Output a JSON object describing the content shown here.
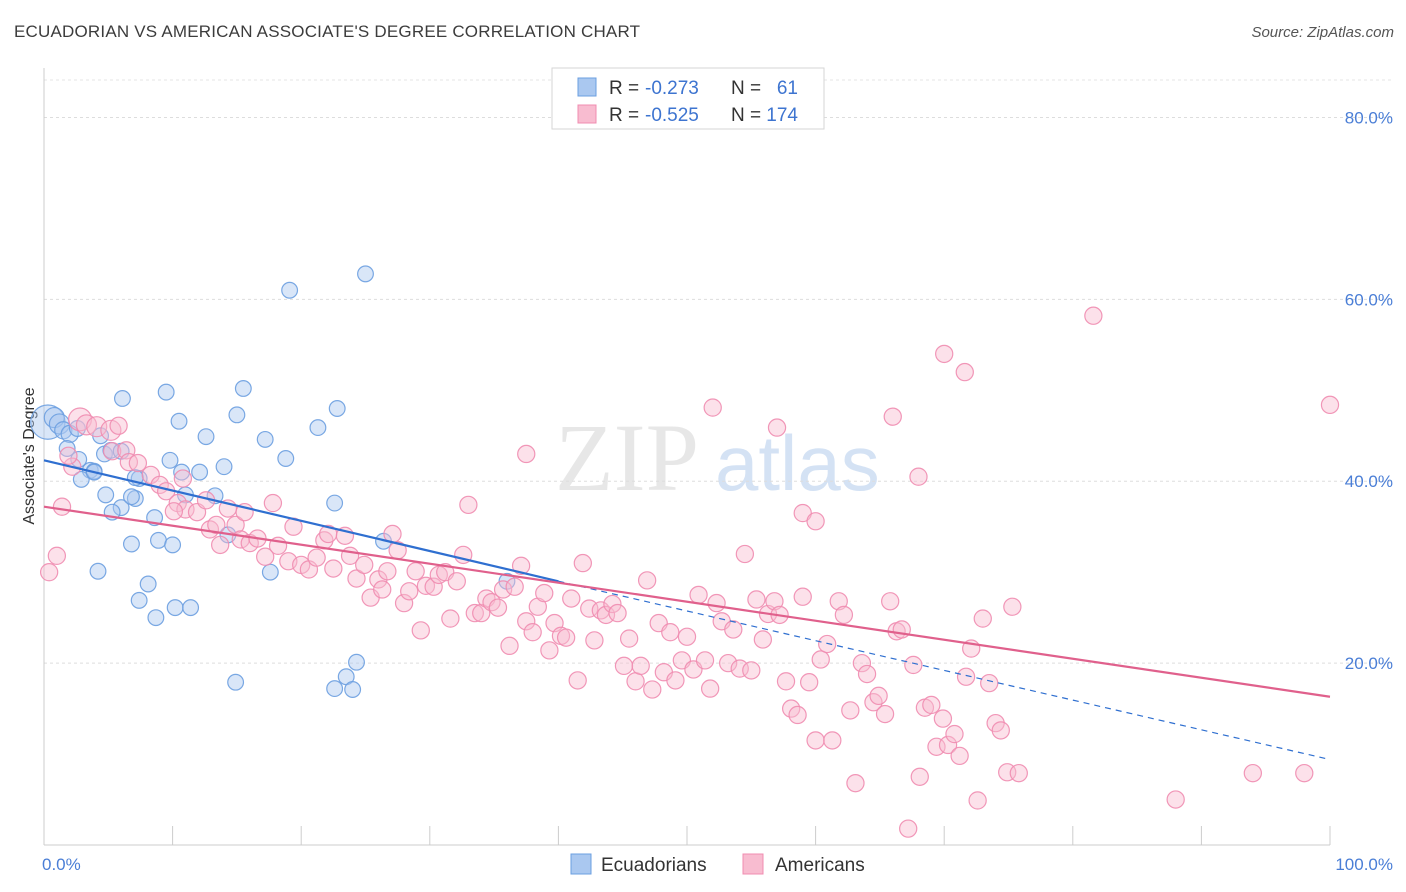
{
  "chart_data": {
    "type": "scatter",
    "title": "ECUADORIAN VS AMERICAN ASSOCIATE'S DEGREE CORRELATION CHART",
    "source": "Source: ZipAtlas.com",
    "watermark": {
      "part1": "ZIP",
      "part2": "atlas"
    },
    "ylabel": "Associate's Degree",
    "xlim": [
      0,
      100
    ],
    "ylim": [
      0,
      85
    ],
    "x_tick_labels": [
      {
        "value": 0,
        "label": "0.0%"
      },
      {
        "value": 100,
        "label": "100.0%"
      }
    ],
    "y_tick_labels": [
      {
        "value": 20,
        "label": "20.0%"
      },
      {
        "value": 40,
        "label": "40.0%"
      },
      {
        "value": 60,
        "label": "60.0%"
      },
      {
        "value": 80,
        "label": "80.0%"
      }
    ],
    "grid": "horizontal dashed",
    "legend_position": "top-center",
    "legend": [
      {
        "r_label": "R =",
        "r_value": "-0.273",
        "n_label": "N =",
        "n_value": "61",
        "color": "#6b9fe0"
      },
      {
        "r_label": "R =",
        "r_value": "-0.525",
        "n_label": "N =",
        "n_value": "174",
        "color": "#f08cb0"
      }
    ],
    "series": [
      {
        "name": "Ecuadorians",
        "color": "#6b9fe0",
        "fill": "#aac8f0",
        "trend_color": "#2f6fd0",
        "trend": {
          "x0": 0,
          "y0": 42.3,
          "x1": 40,
          "y1": 29.0,
          "dash_to_x": 100,
          "dash_to_y": 9.4
        },
        "points": [
          [
            0.3,
            46.5,
            24
          ],
          [
            0.8,
            47.0,
            14
          ],
          [
            1.2,
            46.3,
            14
          ],
          [
            1.5,
            45.6,
            12
          ],
          [
            2.0,
            45.2,
            12
          ],
          [
            1.8,
            43.6,
            11
          ],
          [
            2.6,
            45.8,
            11
          ],
          [
            4.4,
            45.0,
            11
          ],
          [
            2.7,
            42.4,
            11
          ],
          [
            3.6,
            41.2,
            11
          ],
          [
            3.9,
            41.1,
            11
          ],
          [
            2.9,
            40.2,
            11
          ],
          [
            4.7,
            43.0,
            11
          ],
          [
            5.2,
            43.4,
            11
          ],
          [
            6.0,
            43.3,
            11
          ],
          [
            7.4,
            40.3,
            11
          ],
          [
            3.9,
            41.0,
            11
          ],
          [
            4.8,
            38.5,
            11
          ],
          [
            7.1,
            40.4,
            11
          ],
          [
            6.0,
            37.1,
            11
          ],
          [
            5.3,
            36.6,
            11
          ],
          [
            7.1,
            38.1,
            11
          ],
          [
            8.6,
            36.0,
            11
          ],
          [
            6.8,
            38.3,
            11
          ],
          [
            6.1,
            49.1,
            11
          ],
          [
            9.5,
            49.8,
            11
          ],
          [
            10.5,
            46.6,
            11
          ],
          [
            12.6,
            44.9,
            11
          ],
          [
            15.0,
            47.3,
            11
          ],
          [
            15.5,
            50.2,
            11
          ],
          [
            9.8,
            42.3,
            11
          ],
          [
            10.7,
            41.0,
            11
          ],
          [
            12.1,
            41.0,
            11
          ],
          [
            14.0,
            41.6,
            11
          ],
          [
            17.2,
            44.6,
            11
          ],
          [
            18.8,
            42.5,
            11
          ],
          [
            21.3,
            45.9,
            11
          ],
          [
            22.8,
            48.0,
            11
          ],
          [
            11.0,
            38.5,
            11
          ],
          [
            13.3,
            38.4,
            11
          ],
          [
            8.9,
            33.5,
            11
          ],
          [
            6.8,
            33.1,
            11
          ],
          [
            10.0,
            33.0,
            11
          ],
          [
            14.3,
            34.1,
            11
          ],
          [
            4.2,
            30.1,
            11
          ],
          [
            8.1,
            28.7,
            11
          ],
          [
            7.4,
            26.9,
            11
          ],
          [
            8.7,
            25.0,
            11
          ],
          [
            10.2,
            26.1,
            11
          ],
          [
            11.4,
            26.1,
            11
          ],
          [
            17.6,
            30.0,
            11
          ],
          [
            22.6,
            37.6,
            11
          ],
          [
            26.4,
            33.4,
            11
          ],
          [
            36.0,
            29.0,
            11
          ],
          [
            19.1,
            61.0,
            11
          ],
          [
            25.0,
            62.8,
            11
          ],
          [
            14.9,
            17.9,
            11
          ],
          [
            22.6,
            17.2,
            11
          ],
          [
            23.5,
            18.5,
            11
          ],
          [
            24.3,
            20.1,
            11
          ],
          [
            24.0,
            17.1,
            11
          ]
        ]
      },
      {
        "name": "Americans",
        "color": "#f08cb0",
        "fill": "#f8bcd0",
        "trend_color": "#e0608c",
        "trend": {
          "x0": 0,
          "y0": 37.2,
          "x1": 100,
          "y1": 16.3
        },
        "points": [
          [
            0.4,
            30.0,
            12
          ],
          [
            1.0,
            31.8,
            12
          ],
          [
            1.4,
            37.2,
            12
          ],
          [
            2.2,
            41.6,
            12
          ],
          [
            1.9,
            42.8,
            12
          ],
          [
            2.8,
            46.8,
            16
          ],
          [
            3.3,
            46.2,
            14
          ],
          [
            4.1,
            46.0,
            14
          ],
          [
            5.2,
            45.6,
            14
          ],
          [
            5.8,
            46.1,
            12
          ],
          [
            5.3,
            43.3,
            12
          ],
          [
            6.4,
            43.4,
            12
          ],
          [
            6.6,
            42.1,
            12
          ],
          [
            7.3,
            42.0,
            12
          ],
          [
            8.3,
            40.7,
            12
          ],
          [
            9.0,
            39.6,
            12
          ],
          [
            9.5,
            38.9,
            12
          ],
          [
            10.4,
            37.6,
            12
          ],
          [
            11.0,
            36.9,
            12
          ],
          [
            10.1,
            36.7,
            12
          ],
          [
            10.8,
            40.3,
            12
          ],
          [
            11.9,
            36.6,
            12
          ],
          [
            12.6,
            37.9,
            12
          ],
          [
            12.9,
            34.7,
            12
          ],
          [
            13.4,
            35.2,
            12
          ],
          [
            13.7,
            33.0,
            12
          ],
          [
            14.3,
            37.0,
            12
          ],
          [
            14.9,
            35.2,
            12
          ],
          [
            15.3,
            33.6,
            12
          ],
          [
            15.6,
            36.6,
            12
          ],
          [
            16.0,
            33.2,
            12
          ],
          [
            16.6,
            33.7,
            12
          ],
          [
            17.2,
            31.7,
            12
          ],
          [
            17.8,
            37.6,
            12
          ],
          [
            18.2,
            32.9,
            12
          ],
          [
            19.0,
            31.2,
            12
          ],
          [
            19.4,
            35.0,
            12
          ],
          [
            20.0,
            30.8,
            12
          ],
          [
            20.6,
            30.3,
            12
          ],
          [
            21.2,
            31.6,
            12
          ],
          [
            21.8,
            33.5,
            12
          ],
          [
            22.1,
            34.2,
            12
          ],
          [
            22.5,
            30.4,
            12
          ],
          [
            23.4,
            34.0,
            12
          ],
          [
            23.8,
            31.8,
            12
          ],
          [
            24.3,
            29.3,
            12
          ],
          [
            24.9,
            30.8,
            12
          ],
          [
            25.4,
            27.2,
            12
          ],
          [
            26.0,
            29.2,
            12
          ],
          [
            26.3,
            28.1,
            12
          ],
          [
            26.7,
            30.1,
            12
          ],
          [
            27.1,
            34.2,
            12
          ],
          [
            27.5,
            32.4,
            12
          ],
          [
            28.0,
            26.6,
            12
          ],
          [
            28.4,
            27.9,
            12
          ],
          [
            28.9,
            30.1,
            12
          ],
          [
            29.3,
            23.6,
            12
          ],
          [
            29.7,
            28.5,
            12
          ],
          [
            30.3,
            28.4,
            12
          ],
          [
            30.7,
            29.7,
            12
          ],
          [
            31.2,
            30.0,
            12
          ],
          [
            31.6,
            24.9,
            12
          ],
          [
            32.1,
            29.0,
            12
          ],
          [
            32.6,
            31.9,
            12
          ],
          [
            33.0,
            37.4,
            12
          ],
          [
            33.5,
            25.5,
            12
          ],
          [
            34.0,
            25.5,
            12
          ],
          [
            34.4,
            27.1,
            12
          ],
          [
            34.8,
            26.7,
            12
          ],
          [
            35.3,
            26.1,
            12
          ],
          [
            35.7,
            28.1,
            12
          ],
          [
            36.2,
            21.9,
            12
          ],
          [
            36.6,
            28.4,
            12
          ],
          [
            37.1,
            30.7,
            12
          ],
          [
            37.5,
            24.6,
            12
          ],
          [
            38.0,
            23.4,
            12
          ],
          [
            38.4,
            26.2,
            12
          ],
          [
            38.9,
            27.7,
            12
          ],
          [
            39.3,
            21.4,
            12
          ],
          [
            39.7,
            24.4,
            12
          ],
          [
            40.2,
            23.0,
            12
          ],
          [
            40.6,
            22.8,
            12
          ],
          [
            41.0,
            27.1,
            12
          ],
          [
            41.5,
            18.1,
            12
          ],
          [
            41.9,
            31.0,
            12
          ],
          [
            42.4,
            26.0,
            12
          ],
          [
            42.8,
            22.5,
            12
          ],
          [
            43.3,
            25.8,
            12
          ],
          [
            43.7,
            25.3,
            12
          ],
          [
            44.2,
            26.5,
            12
          ],
          [
            44.6,
            25.5,
            12
          ],
          [
            45.1,
            19.7,
            12
          ],
          [
            45.5,
            22.7,
            12
          ],
          [
            46.0,
            18.0,
            12
          ],
          [
            46.4,
            19.7,
            12
          ],
          [
            46.9,
            29.1,
            12
          ],
          [
            47.3,
            17.1,
            12
          ],
          [
            47.8,
            24.4,
            12
          ],
          [
            48.2,
            19.0,
            12
          ],
          [
            48.7,
            23.4,
            12
          ],
          [
            49.1,
            18.1,
            12
          ],
          [
            49.6,
            20.3,
            12
          ],
          [
            50.0,
            22.9,
            12
          ],
          [
            50.5,
            19.3,
            12
          ],
          [
            50.9,
            27.5,
            12
          ],
          [
            51.4,
            20.3,
            12
          ],
          [
            51.8,
            17.2,
            12
          ],
          [
            52.3,
            26.6,
            12
          ],
          [
            52.7,
            24.6,
            12
          ],
          [
            53.2,
            20.0,
            12
          ],
          [
            53.6,
            23.7,
            12
          ],
          [
            54.1,
            19.4,
            12
          ],
          [
            54.5,
            32.0,
            12
          ],
          [
            55.0,
            19.2,
            12
          ],
          [
            55.4,
            27.0,
            12
          ],
          [
            55.9,
            22.6,
            12
          ],
          [
            56.3,
            25.4,
            12
          ],
          [
            56.8,
            26.8,
            12
          ],
          [
            57.2,
            25.3,
            12
          ],
          [
            57.7,
            18.0,
            12
          ],
          [
            58.1,
            15.0,
            12
          ],
          [
            58.6,
            14.3,
            12
          ],
          [
            59.0,
            27.3,
            12
          ],
          [
            59.5,
            17.9,
            12
          ],
          [
            60.0,
            11.5,
            12
          ],
          [
            60.4,
            20.4,
            12
          ],
          [
            60.9,
            22.1,
            12
          ],
          [
            61.3,
            11.5,
            12
          ],
          [
            61.8,
            26.8,
            12
          ],
          [
            62.2,
            25.3,
            12
          ],
          [
            62.7,
            14.8,
            12
          ],
          [
            63.1,
            6.8,
            12
          ],
          [
            63.6,
            20.0,
            12
          ],
          [
            64.0,
            18.8,
            12
          ],
          [
            64.5,
            15.7,
            12
          ],
          [
            64.9,
            16.4,
            12
          ],
          [
            65.4,
            14.4,
            12
          ],
          [
            65.8,
            26.8,
            12
          ],
          [
            66.3,
            23.5,
            12
          ],
          [
            66.7,
            23.7,
            12
          ],
          [
            67.2,
            1.8,
            12
          ],
          [
            67.6,
            19.8,
            12
          ],
          [
            68.1,
            7.5,
            12
          ],
          [
            68.5,
            15.1,
            12
          ],
          [
            69.0,
            15.4,
            12
          ],
          [
            69.4,
            10.8,
            12
          ],
          [
            69.9,
            13.9,
            12
          ],
          [
            70.3,
            11.0,
            12
          ],
          [
            70.8,
            12.2,
            12
          ],
          [
            71.2,
            9.8,
            12
          ],
          [
            71.7,
            18.5,
            12
          ],
          [
            72.1,
            21.6,
            12
          ],
          [
            72.6,
            4.9,
            12
          ],
          [
            73.0,
            24.9,
            12
          ],
          [
            73.5,
            17.8,
            12
          ],
          [
            74.0,
            13.4,
            12
          ],
          [
            74.4,
            12.6,
            12
          ],
          [
            74.9,
            8.0,
            12
          ],
          [
            75.3,
            26.2,
            12
          ],
          [
            75.8,
            7.9,
            12
          ],
          [
            37.5,
            43.0,
            12
          ],
          [
            52.0,
            48.1,
            12
          ],
          [
            57.0,
            45.9,
            12
          ],
          [
            66.0,
            47.1,
            12
          ],
          [
            70.0,
            54.0,
            12
          ],
          [
            71.6,
            52.0,
            12
          ],
          [
            81.6,
            58.2,
            12
          ],
          [
            68.0,
            40.5,
            12
          ],
          [
            59.0,
            36.5,
            12
          ],
          [
            60.0,
            35.6,
            12
          ],
          [
            100.0,
            48.4,
            12
          ],
          [
            98.0,
            7.9,
            12
          ],
          [
            94.0,
            7.9,
            12
          ],
          [
            88.0,
            5.0,
            12
          ]
        ]
      }
    ]
  }
}
